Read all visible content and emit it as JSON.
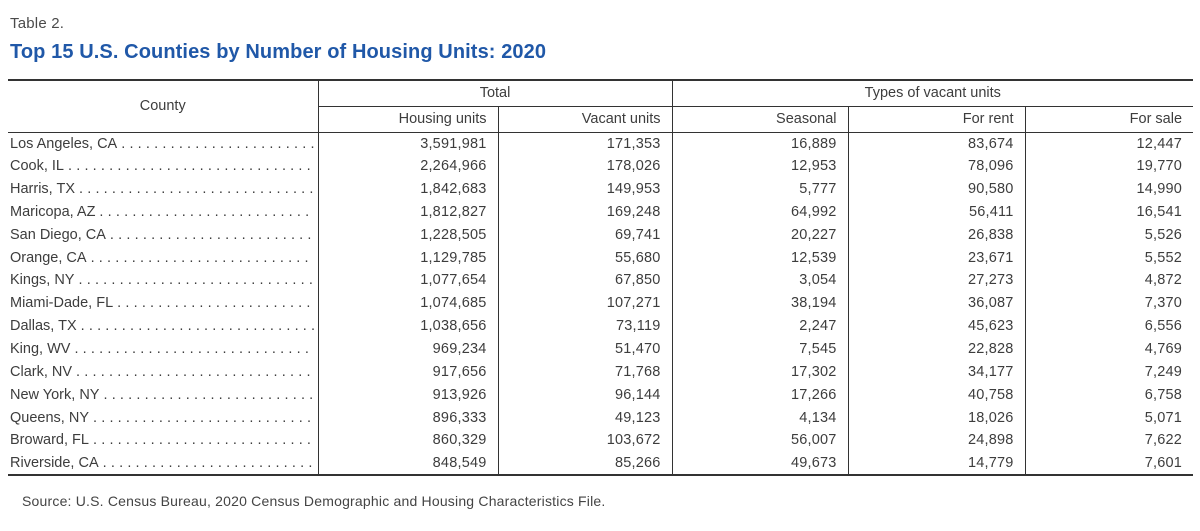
{
  "page": {
    "table_label": "Table 2.",
    "title": "Top 15 U.S. Counties by Number of Housing Units: 2020",
    "source": "Source: U.S. Census Bureau, 2020 Census Demographic and Housing Characteristics File."
  },
  "colors": {
    "title_blue": "#2058a8",
    "text": "#3d3d3d",
    "border": "#333333",
    "background": "#ffffff"
  },
  "table": {
    "header_groups": {
      "county": "County",
      "total": "Total",
      "types": "Types of vacant units"
    },
    "subheaders": [
      "Housing units",
      "Vacant units",
      "Seasonal",
      "For rent",
      "For sale"
    ],
    "rows": [
      {
        "county": "Los Angeles, CA",
        "values": [
          "3,591,981",
          "171,353",
          "16,889",
          "83,674",
          "12,447"
        ]
      },
      {
        "county": "Cook, IL",
        "values": [
          "2,264,966",
          "178,026",
          "12,953",
          "78,096",
          "19,770"
        ]
      },
      {
        "county": "Harris, TX",
        "values": [
          "1,842,683",
          "149,953",
          "5,777",
          "90,580",
          "14,990"
        ]
      },
      {
        "county": "Maricopa, AZ",
        "values": [
          "1,812,827",
          "169,248",
          "64,992",
          "56,411",
          "16,541"
        ]
      },
      {
        "county": "San Diego, CA",
        "values": [
          "1,228,505",
          "69,741",
          "20,227",
          "26,838",
          "5,526"
        ]
      },
      {
        "county": "Orange, CA",
        "values": [
          "1,129,785",
          "55,680",
          "12,539",
          "23,671",
          "5,552"
        ]
      },
      {
        "county": "Kings, NY",
        "values": [
          "1,077,654",
          "67,850",
          "3,054",
          "27,273",
          "4,872"
        ]
      },
      {
        "county": "Miami-Dade, FL",
        "values": [
          "1,074,685",
          "107,271",
          "38,194",
          "36,087",
          "7,370"
        ]
      },
      {
        "county": "Dallas, TX",
        "values": [
          "1,038,656",
          "73,119",
          "2,247",
          "45,623",
          "6,556"
        ]
      },
      {
        "county": "King, WV",
        "values": [
          "969,234",
          "51,470",
          "7,545",
          "22,828",
          "4,769"
        ]
      },
      {
        "county": "Clark, NV",
        "values": [
          "917,656",
          "71,768",
          "17,302",
          "34,177",
          "7,249"
        ]
      },
      {
        "county": "New York, NY",
        "values": [
          "913,926",
          "96,144",
          "17,266",
          "40,758",
          "6,758"
        ]
      },
      {
        "county": "Queens, NY",
        "values": [
          "896,333",
          "49,123",
          "4,134",
          "18,026",
          "5,071"
        ]
      },
      {
        "county": "Broward, FL",
        "values": [
          "860,329",
          "103,672",
          "56,007",
          "24,898",
          "7,622"
        ]
      },
      {
        "county": "Riverside, CA",
        "values": [
          "848,549",
          "85,266",
          "49,673",
          "14,779",
          "7,601"
        ]
      }
    ]
  }
}
